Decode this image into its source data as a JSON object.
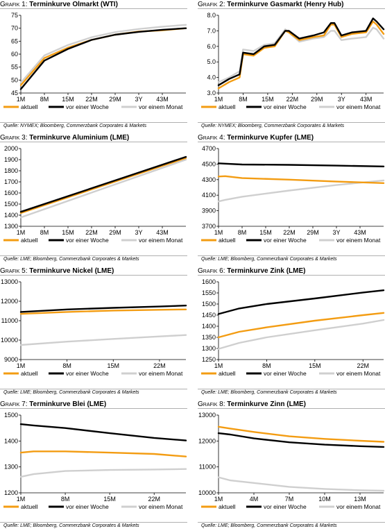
{
  "colors": {
    "aktuell": "#f39c12",
    "woche": "#000000",
    "monat": "#cfcfcf"
  },
  "panels": [
    {
      "prefix": "Grafik 1:",
      "title": "Terminkurve Olmarkt (WTI)",
      "source": "Quelle: NYMEX; Bloomberg, Commerzbank Corporates & Markets",
      "chart_data": {
        "type": "line",
        "title": "Terminkurve Olmarkt (WTI)",
        "ylim": [
          45,
          75
        ],
        "yticks": [
          "45",
          "50",
          "55",
          "60",
          "65",
          "70",
          "75"
        ],
        "x": [
          1,
          8,
          15,
          22,
          29,
          36,
          43,
          50
        ],
        "xticks": [
          {
            "x": 1,
            "label": "1M"
          },
          {
            "x": 8,
            "label": "8M"
          },
          {
            "x": 15,
            "label": "15M"
          },
          {
            "x": 22,
            "label": "22M"
          },
          {
            "x": 29,
            "label": "29M"
          },
          {
            "x": 36,
            "label": "3Y"
          },
          {
            "x": 43,
            "label": "43M"
          }
        ],
        "series": [
          {
            "name": "aktuell",
            "key": "aktuell",
            "values": [
              48,
              58.5,
              62.5,
              65.5,
              67.5,
              68.7,
              69.2,
              70
            ]
          },
          {
            "name": "vor einer Woche",
            "key": "woche",
            "values": [
              46.5,
              57.5,
              62,
              65.5,
              67.5,
              68.6,
              69.4,
              70
            ]
          },
          {
            "name": "vor einem Monat",
            "key": "monat",
            "values": [
              49,
              59.5,
              63.5,
              66.5,
              68.5,
              69.7,
              70.6,
              71.3
            ]
          }
        ]
      }
    },
    {
      "prefix": "Grafik 2:",
      "title": "Terminkurve Gasmarkt (Henry Hub)",
      "source": "Quelle: NYMEX; Bloomberg, Commerzbank Corporates & Markets",
      "chart_data": {
        "type": "line",
        "title": "Terminkurve Gasmarkt (Henry Hub)",
        "ylim": [
          3.0,
          8.0
        ],
        "yticks": [
          "3.0",
          "4.0",
          "5.0",
          "6.0",
          "7.0",
          "8.0"
        ],
        "x": [
          1,
          4,
          7,
          8,
          11,
          14,
          17,
          20,
          21,
          24,
          28,
          31,
          33,
          34,
          36,
          39,
          43,
          45,
          46,
          48
        ],
        "xticks": [
          {
            "x": 1,
            "label": "1M"
          },
          {
            "x": 8,
            "label": "8M"
          },
          {
            "x": 15,
            "label": "15M"
          },
          {
            "x": 22,
            "label": "22M"
          },
          {
            "x": 29,
            "label": "29M"
          },
          {
            "x": 36,
            "label": "3Y"
          },
          {
            "x": 43,
            "label": "43M"
          }
        ],
        "series": [
          {
            "name": "aktuell",
            "key": "aktuell",
            "values": [
              3.3,
              3.7,
              4.0,
              5.5,
              5.4,
              5.9,
              6.0,
              7.0,
              6.9,
              6.4,
              6.6,
              6.7,
              7.4,
              7.4,
              6.6,
              6.8,
              6.9,
              7.6,
              7.4,
              6.8
            ]
          },
          {
            "name": "vor einer Woche",
            "key": "woche",
            "values": [
              3.5,
              3.9,
              4.2,
              5.6,
              5.5,
              6.0,
              6.1,
              7.0,
              7.0,
              6.5,
              6.7,
              6.9,
              7.5,
              7.5,
              6.7,
              6.9,
              7.0,
              7.8,
              7.6,
              7.1
            ]
          },
          {
            "name": "vor einem Monat",
            "key": "monat",
            "values": [
              3.7,
              4.0,
              4.4,
              5.8,
              5.7,
              6.1,
              6.2,
              7.1,
              6.9,
              6.3,
              6.5,
              6.6,
              7.0,
              7.0,
              6.4,
              6.5,
              6.6,
              7.2,
              7.1,
              6.5
            ]
          }
        ]
      }
    },
    {
      "prefix": "Grafik 3:",
      "title": "Terminkurve Aluminium (LME)",
      "source": "Quelle: LME; Bloomberg, Commerzbank Corporates & Markets",
      "chart_data": {
        "type": "line",
        "title": "Terminkurve Aluminium (LME)",
        "ylim": [
          1300,
          2000
        ],
        "yticks": [
          "1300",
          "1400",
          "1500",
          "1600",
          "1700",
          "1800",
          "1900",
          "2000"
        ],
        "x": [
          1,
          50
        ],
        "xticks": [
          {
            "x": 1,
            "label": "1M"
          },
          {
            "x": 8,
            "label": "8M"
          },
          {
            "x": 15,
            "label": "15M"
          },
          {
            "x": 22,
            "label": "22M"
          },
          {
            "x": 29,
            "label": "29M"
          },
          {
            "x": 36,
            "label": "3Y"
          },
          {
            "x": 43,
            "label": "43M"
          }
        ],
        "series": [
          {
            "name": "aktuell",
            "key": "aktuell",
            "values": [
              1420,
              1915
            ]
          },
          {
            "name": "vor einer Woche",
            "key": "woche",
            "values": [
              1430,
              1925
            ]
          },
          {
            "name": "vor einem Monat",
            "key": "monat",
            "values": [
              1380,
              1900
            ]
          }
        ]
      }
    },
    {
      "prefix": "Grafik 4:",
      "title": "Terminkurve Kupfer (LME)",
      "source": "Quelle: LME; Bloomberg, Commerzbank Corporates & Markets",
      "chart_data": {
        "type": "line",
        "title": "Terminkurve Kupfer (LME)",
        "ylim": [
          3700,
          4700
        ],
        "yticks": [
          "3700",
          "3900",
          "4100",
          "4300",
          "4500",
          "4700"
        ],
        "x": [
          1,
          3,
          8,
          22,
          36,
          50
        ],
        "xticks": [
          {
            "x": 1,
            "label": "1M"
          },
          {
            "x": 8,
            "label": "8M"
          },
          {
            "x": 15,
            "label": "15M"
          },
          {
            "x": 22,
            "label": "22M"
          },
          {
            "x": 29,
            "label": "29M"
          },
          {
            "x": 36,
            "label": "3Y"
          },
          {
            "x": 43,
            "label": "43M"
          }
        ],
        "series": [
          {
            "name": "aktuell",
            "key": "aktuell",
            "values": [
              4340,
              4345,
              4320,
              4300,
              4275,
              4255
            ]
          },
          {
            "name": "vor einer Woche",
            "key": "woche",
            "values": [
              4510,
              4505,
              4495,
              4490,
              4480,
              4470
            ]
          },
          {
            "name": "vor einem Monat",
            "key": "monat",
            "values": [
              4020,
              4040,
              4080,
              4160,
              4230,
              4290
            ]
          }
        ]
      }
    },
    {
      "prefix": "Grafik 5:",
      "title": "Terminkurve Nickel (LME)",
      "source": "Quelle: LME; Bloomberg, Commerzbank Corporates & Markets",
      "chart_data": {
        "type": "line",
        "title": "Terminkurve Nickel (LME)",
        "ylim": [
          9000,
          13000
        ],
        "yticks": [
          "9000",
          "10000",
          "11000",
          "12000",
          "13000"
        ],
        "x": [
          1,
          8,
          15,
          22,
          26
        ],
        "xticks": [
          {
            "x": 1,
            "label": "1M"
          },
          {
            "x": 8,
            "label": "8M"
          },
          {
            "x": 15,
            "label": "15M"
          },
          {
            "x": 22,
            "label": "22M"
          }
        ],
        "series": [
          {
            "name": "aktuell",
            "key": "aktuell",
            "values": [
              11350,
              11450,
              11520,
              11560,
              11580
            ]
          },
          {
            "name": "vor einer Woche",
            "key": "woche",
            "values": [
              11450,
              11580,
              11660,
              11730,
              11780
            ]
          },
          {
            "name": "vor einem Monat",
            "key": "monat",
            "values": [
              9750,
              9920,
              10060,
              10190,
              10260
            ]
          }
        ]
      }
    },
    {
      "prefix": "Grafik 6:",
      "title": "Terminkurve Zink (LME)",
      "source": "Quelle: LME; Bloomberg, Commerzbank Corporates & Markets",
      "chart_data": {
        "type": "line",
        "title": "Terminkurve Zink (LME)",
        "ylim": [
          1250,
          1600
        ],
        "yticks": [
          "1250",
          "1300",
          "1350",
          "1400",
          "1450",
          "1500",
          "1550",
          "1600"
        ],
        "x": [
          1,
          4,
          8,
          15,
          22,
          25
        ],
        "xticks": [
          {
            "x": 1,
            "label": "1M"
          },
          {
            "x": 8,
            "label": "8M"
          },
          {
            "x": 15,
            "label": "15M"
          },
          {
            "x": 22,
            "label": "22M"
          }
        ],
        "series": [
          {
            "name": "aktuell",
            "key": "aktuell",
            "values": [
              1350,
              1375,
              1395,
              1425,
              1450,
              1460
            ]
          },
          {
            "name": "vor einer Woche",
            "key": "woche",
            "values": [
              1455,
              1480,
              1500,
              1525,
              1552,
              1562
            ]
          },
          {
            "name": "vor einem Monat",
            "key": "monat",
            "values": [
              1298,
              1325,
              1350,
              1382,
              1412,
              1428
            ]
          }
        ]
      }
    },
    {
      "prefix": "Grafik 7:",
      "title": "Terminkurve Blei (LME)",
      "source": "Quelle: LME; Bloomberg, Commerzbank Corporates & Markets",
      "chart_data": {
        "type": "line",
        "title": "Terminkurve Blei (LME)",
        "ylim": [
          1200,
          1500
        ],
        "yticks": [
          "1200",
          "1300",
          "1400",
          "1500"
        ],
        "x": [
          1,
          3,
          8,
          15,
          22,
          27
        ],
        "xticks": [
          {
            "x": 1,
            "label": "1M"
          },
          {
            "x": 8,
            "label": "8M"
          },
          {
            "x": 15,
            "label": "15M"
          },
          {
            "x": 22,
            "label": "22M"
          }
        ],
        "series": [
          {
            "name": "aktuell",
            "key": "aktuell",
            "values": [
              1355,
              1360,
              1360,
              1355,
              1350,
              1340
            ]
          },
          {
            "name": "vor einer Woche",
            "key": "woche",
            "values": [
              1465,
              1460,
              1450,
              1430,
              1412,
              1402
            ]
          },
          {
            "name": "vor einem Monat",
            "key": "monat",
            "values": [
              1262,
              1272,
              1284,
              1288,
              1290,
              1292
            ]
          }
        ]
      }
    },
    {
      "prefix": "Grafik 8:",
      "title": "Terminkurve Zinn (LME)",
      "source": "Quelle: LME; Bloomberg, Commerzbank Corporates & Markets",
      "chart_data": {
        "type": "line",
        "title": "Terminkurve Zinn (LME)",
        "ylim": [
          10000,
          13000
        ],
        "yticks": [
          "10000",
          "11000",
          "12000",
          "13000"
        ],
        "x": [
          1,
          2,
          4,
          7,
          10,
          13,
          15
        ],
        "xticks": [
          {
            "x": 1,
            "label": "1M"
          },
          {
            "x": 4,
            "label": "4M"
          },
          {
            "x": 7,
            "label": "7M"
          },
          {
            "x": 10,
            "label": "10M"
          },
          {
            "x": 13,
            "label": "13M"
          }
        ],
        "series": [
          {
            "name": "aktuell",
            "key": "aktuell",
            "values": [
              12550,
              12480,
              12350,
              12180,
              12080,
              12010,
              11970
            ]
          },
          {
            "name": "vor einer Woche",
            "key": "woche",
            "values": [
              12300,
              12250,
              12100,
              11950,
              11860,
              11800,
              11770
            ]
          },
          {
            "name": "vor einem Monat",
            "key": "monat",
            "values": [
              10600,
              10480,
              10380,
              10230,
              10150,
              10100,
              10080
            ]
          }
        ]
      }
    }
  ]
}
